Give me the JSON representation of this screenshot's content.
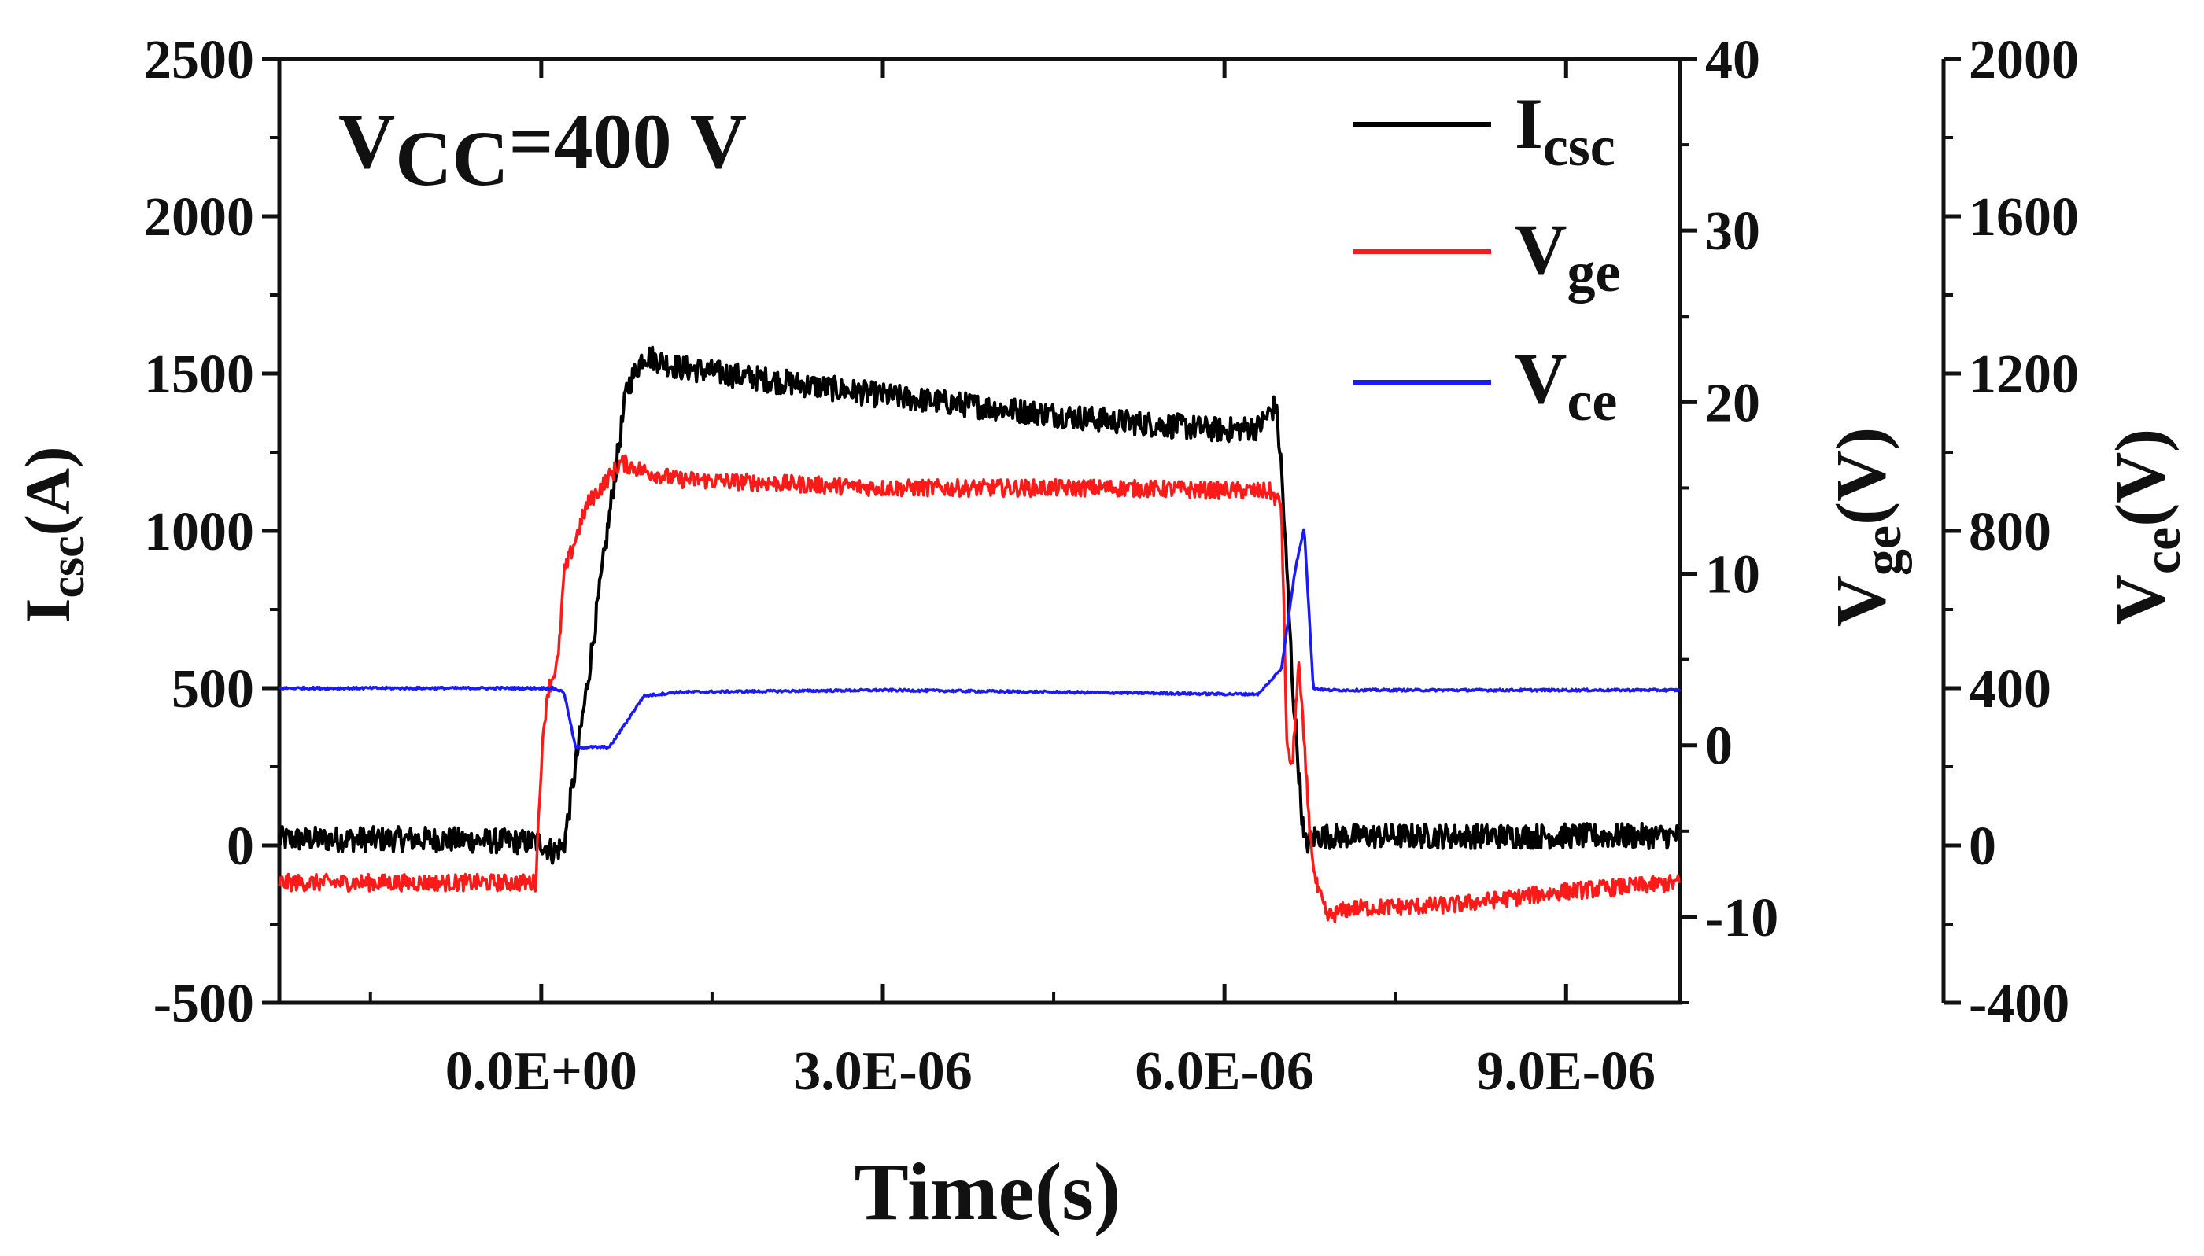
{
  "chart_data": {
    "type": "line",
    "annotation": {
      "main": "V",
      "sub": "CC",
      "rest": "=400 V"
    },
    "x_axis": {
      "label": "Time(s)",
      "range": [
        -2.3e-06,
        1e-05
      ],
      "ticks": [
        0,
        3e-06,
        6e-06,
        9e-06
      ],
      "tick_labels": [
        "0.0E+00",
        "3.0E-06",
        "6.0E-06",
        "9.0E-06"
      ],
      "minor_ticks": [
        -1.5e-06,
        1.5e-06,
        4.5e-06,
        7.5e-06
      ]
    },
    "y_axes": [
      {
        "id": "icsc",
        "label_main": "I",
        "label_sub": "csc",
        "label_unit": "(A)",
        "range": [
          -500,
          2500
        ],
        "ticks": [
          -500,
          0,
          500,
          1000,
          1500,
          2000,
          2500
        ],
        "tick_labels": [
          "-500",
          "0",
          "500",
          "1000",
          "1500",
          "2000",
          "2500"
        ],
        "position": "left"
      },
      {
        "id": "vge",
        "label_main": "V",
        "label_sub": "ge",
        "label_unit": "(V)",
        "range": [
          -15,
          40
        ],
        "ticks": [
          -10,
          0,
          10,
          20,
          30,
          40
        ],
        "tick_labels": [
          "-10",
          "0",
          "10",
          "20",
          "30",
          "40"
        ],
        "position": "right"
      },
      {
        "id": "vce",
        "label_main": "V",
        "label_sub": "ce",
        "label_unit": "(V)",
        "range": [
          -400,
          2000
        ],
        "ticks": [
          -400,
          0,
          400,
          800,
          1200,
          1600,
          2000
        ],
        "tick_labels": [
          "-400",
          "0",
          "400",
          "800",
          "1200",
          "1600",
          "2000"
        ],
        "position": "right-offset"
      }
    ],
    "series": [
      {
        "name_main": "I",
        "name_sub": "csc",
        "axis": "icsc",
        "color": "#000000",
        "x": [
          -2.3e-06,
          -1e-06,
          0,
          1e-07,
          2e-07,
          4e-07,
          6e-07,
          7.5e-07,
          9e-07,
          1.2e-06,
          2e-06,
          3e-06,
          4e-06,
          5e-06,
          6e-06,
          6.3e-06,
          6.45e-06,
          6.5e-06,
          6.6e-06,
          6.7e-06,
          6.8e-06,
          7e-06,
          8e-06,
          9e-06,
          1e-05
        ],
        "y": [
          20,
          20,
          10,
          -20,
          0,
          500,
          1050,
          1450,
          1560,
          1520,
          1480,
          1430,
          1390,
          1350,
          1320,
          1330,
          1400,
          1200,
          500,
          0,
          30,
          30,
          30,
          30,
          30
        ],
        "noise": 40
      },
      {
        "name_main": "V",
        "name_sub": "ge",
        "axis": "vge",
        "color": "#ff1a1a",
        "x": [
          -2.3e-06,
          -5e-08,
          0.0,
          5e-08,
          1e-07,
          1.5e-07,
          2e-07,
          4e-07,
          7e-07,
          9e-07,
          1.2e-06,
          2e-06,
          3e-06,
          4e-06,
          5e-06,
          6.4e-06,
          6.5e-06,
          6.55e-06,
          6.6e-06,
          6.65e-06,
          6.75e-06,
          6.8e-06,
          6.9e-06,
          7.1e-06,
          8e-06,
          9e-06,
          1e-05
        ],
        "y": [
          -8,
          -8,
          -1,
          3,
          4,
          5,
          10,
          14,
          16.5,
          16,
          15.5,
          15.3,
          15,
          15,
          15,
          14.8,
          14,
          -0.5,
          -1,
          5,
          -5,
          -8,
          -10,
          -9.5,
          -9.3,
          -8.5,
          -8
        ],
        "noise": 0.5
      },
      {
        "name_main": "V",
        "name_sub": "ce",
        "axis": "vce",
        "color": "#1a1aff",
        "x": [
          -2.3e-06,
          1e-07,
          2e-07,
          3e-07,
          6e-07,
          9e-07,
          1.2e-06,
          3e-06,
          6e-06,
          6.3e-06,
          6.5e-06,
          6.62e-06,
          6.7e-06,
          6.78e-06,
          6.9e-06,
          8e-06,
          1e-05
        ],
        "y": [
          400,
          400,
          390,
          250,
          250,
          380,
          390,
          395,
          385,
          385,
          450,
          700,
          810,
          400,
          395,
          395,
          395
        ],
        "noise": 3
      }
    ],
    "legend": {
      "position": "top-right"
    }
  }
}
